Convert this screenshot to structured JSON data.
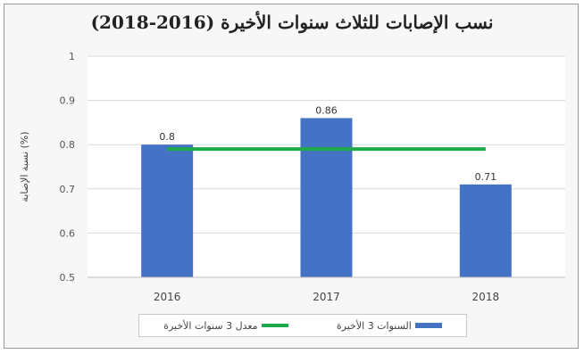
{
  "chart_data": {
    "type": "bar",
    "title": "نسب الإصابات للثلاث سنوات الأخيرة (2016-2018)",
    "ylabel": "نسبة الإصابة (%)",
    "xlabel": "",
    "categories": [
      "2016",
      "2017",
      "2018"
    ],
    "series": [
      {
        "name": "السنوات 3 الأخيرة",
        "type": "bar",
        "values": [
          0.8,
          0.86,
          0.71
        ],
        "color": "#4472c4"
      },
      {
        "name": "معدل 3 سنوات الأخيرة",
        "type": "line",
        "values": [
          0.79,
          0.79,
          0.79
        ],
        "color": "#1faa4a"
      }
    ],
    "data_labels": [
      "0.8",
      "0.86",
      "0.71"
    ],
    "ylim": [
      0.5,
      1
    ],
    "yticks": [
      "0.5",
      "0.6",
      "0.7",
      "0.8",
      "0.9",
      "1"
    ],
    "grid": true,
    "legend_position": "bottom"
  }
}
